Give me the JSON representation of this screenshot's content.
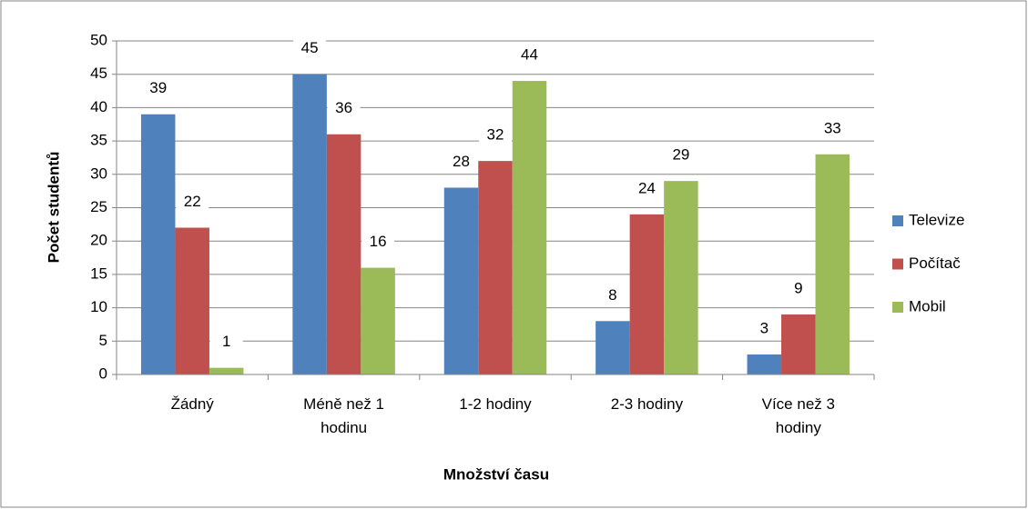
{
  "chart_data": {
    "type": "bar",
    "categories": [
      "Žádný",
      "Méně než 1 hodinu",
      "1-2 hodiny",
      "2-3 hodiny",
      "Více než 3 hodiny"
    ],
    "series": [
      {
        "name": "Televize",
        "color": "#4f81bd",
        "values": [
          39,
          45,
          28,
          8,
          3
        ]
      },
      {
        "name": "Počítač",
        "color": "#c0504d",
        "values": [
          22,
          36,
          32,
          24,
          9
        ]
      },
      {
        "name": "Mobil",
        "color": "#9bbb59",
        "values": [
          1,
          16,
          44,
          29,
          33
        ]
      }
    ],
    "xlabel": "Množství času",
    "ylabel": "Počet studentů",
    "ylim": [
      0,
      50
    ],
    "yticks": [
      0,
      5,
      10,
      15,
      20,
      25,
      30,
      35,
      40,
      45,
      50
    ],
    "grid": true,
    "legend": "right"
  }
}
